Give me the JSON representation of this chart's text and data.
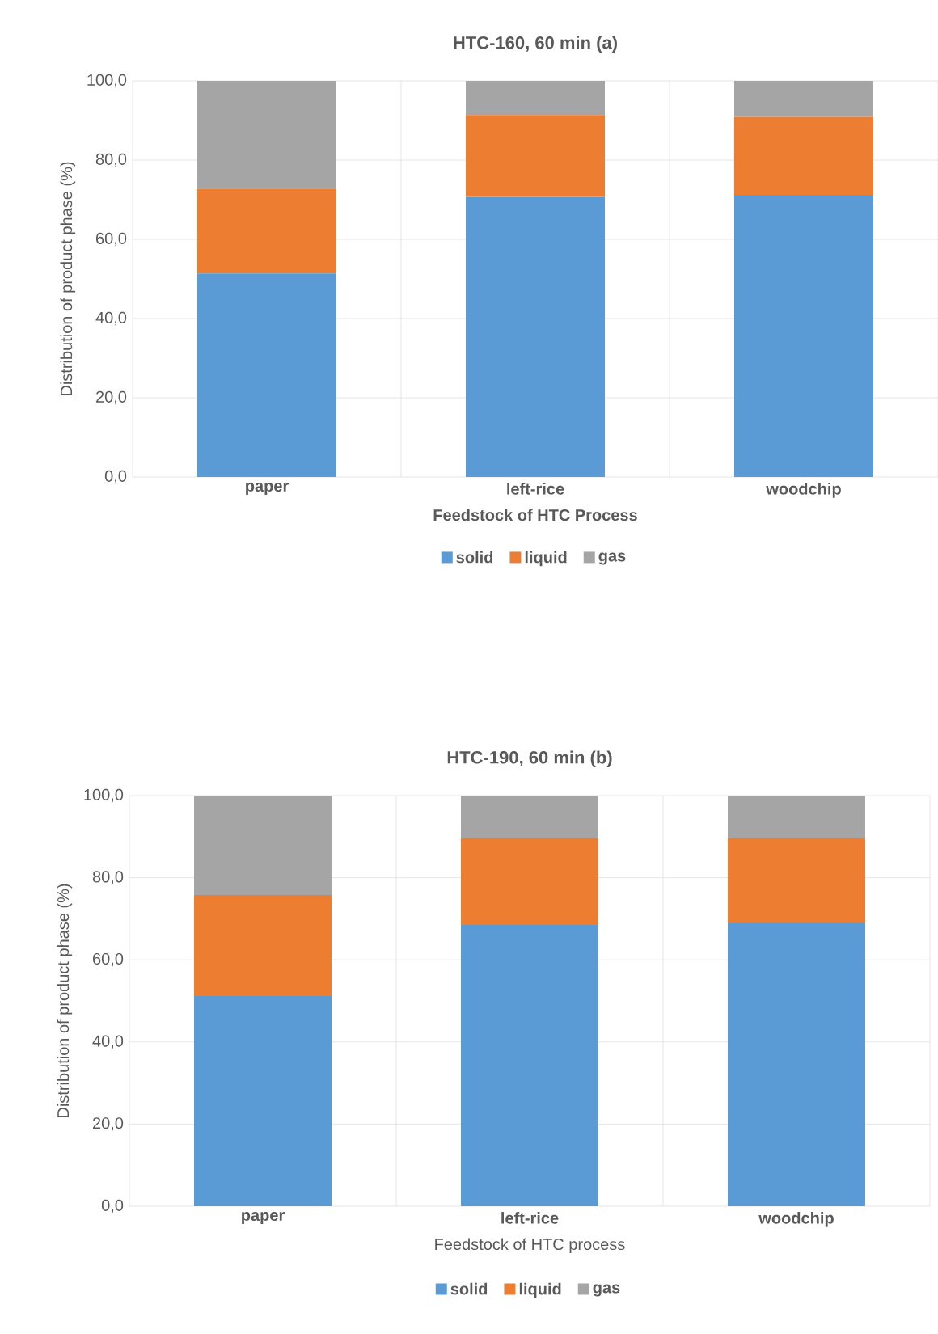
{
  "chart_data": [
    {
      "type": "bar",
      "title": "HTC-160, 60 min (a)",
      "xlabel": "Feedstock of HTC Process",
      "ylabel": "Distribution of product phase (%)",
      "categories": [
        "paper",
        "left-rice",
        "woodchip"
      ],
      "stacked": true,
      "grid": true,
      "legend": "bottom",
      "ylim": [
        0,
        100
      ],
      "yticks": [
        {
          "value": 0,
          "label": "0,0"
        },
        {
          "value": 20,
          "label": "20,0"
        },
        {
          "value": 40,
          "label": "40,0"
        },
        {
          "value": 60,
          "label": "60,0"
        },
        {
          "value": 80,
          "label": "80,0"
        },
        {
          "value": 100,
          "label": "100,0"
        }
      ],
      "series": [
        {
          "name": "solid",
          "color": "#5b9bd5",
          "values": [
            51.4,
            70.7,
            71.2
          ]
        },
        {
          "name": "liquid",
          "color": "#ed7d31",
          "values": [
            21.4,
            20.7,
            19.7
          ]
        },
        {
          "name": "gas",
          "color": "#a5a5a5",
          "values": [
            27.2,
            8.6,
            9.1
          ]
        }
      ]
    },
    {
      "type": "bar",
      "title": "HTC-190, 60 min (b)",
      "xlabel": "Feedstock of HTC process",
      "ylabel": "Distribution of product phase (%)",
      "categories": [
        "paper",
        "left-rice",
        "woodchip"
      ],
      "stacked": true,
      "grid": true,
      "legend": "bottom",
      "ylim": [
        0,
        100
      ],
      "yticks": [
        {
          "value": 0,
          "label": "0,0"
        },
        {
          "value": 20,
          "label": "20,0"
        },
        {
          "value": 40,
          "label": "40,0"
        },
        {
          "value": 60,
          "label": "60,0"
        },
        {
          "value": 80,
          "label": "80,0"
        },
        {
          "value": 100,
          "label": "100,0"
        }
      ],
      "series": [
        {
          "name": "solid",
          "color": "#5b9bd5",
          "values": [
            51.2,
            68.5,
            68.9
          ]
        },
        {
          "name": "liquid",
          "color": "#ed7d31",
          "values": [
            24.6,
            21.1,
            20.7
          ]
        },
        {
          "name": "gas",
          "color": "#a5a5a5",
          "values": [
            24.2,
            10.4,
            10.4
          ]
        }
      ]
    }
  ]
}
